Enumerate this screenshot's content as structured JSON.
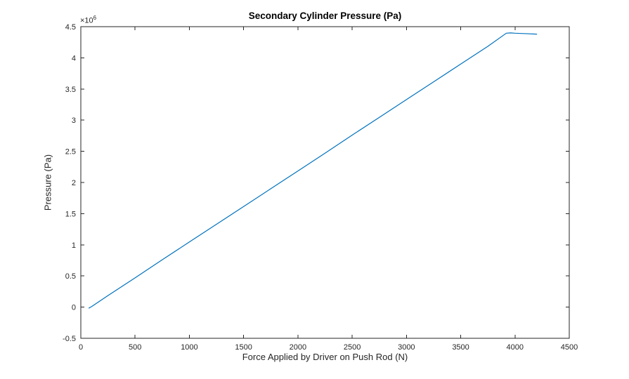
{
  "chart_data": {
    "type": "line",
    "title": "Secondary Cylinder Pressure (Pa)",
    "xlabel": "Force Applied by Driver on Push Rod (N)",
    "ylabel": "Pressure (Pa)",
    "y_exponent_base": "×10",
    "y_exponent": "6",
    "xlim": [
      0,
      4500
    ],
    "ylim": [
      -500000,
      4500000
    ],
    "xticks": [
      0,
      500,
      1000,
      1500,
      2000,
      2500,
      3000,
      3500,
      4000,
      4500
    ],
    "xtick_labels": [
      "0",
      "500",
      "1000",
      "1500",
      "2000",
      "2500",
      "3000",
      "3500",
      "4000",
      "4500"
    ],
    "yticks": [
      -500000,
      0,
      500000,
      1000000,
      1500000,
      2000000,
      2500000,
      3000000,
      3500000,
      4000000,
      4500000
    ],
    "ytick_labels": [
      "-0.5",
      "0",
      "0.5",
      "1",
      "1.5",
      "2",
      "2.5",
      "3",
      "3.5",
      "4",
      "4.5"
    ],
    "grid": false,
    "legend": null,
    "line_color": "#0072BD",
    "axes_color": "#262626",
    "series": [
      {
        "name": "secondary-cylinder-pressure",
        "x": [
          75,
          100,
          250,
          500,
          750,
          1000,
          1250,
          1500,
          1750,
          2000,
          2250,
          2500,
          2750,
          3000,
          3250,
          3500,
          3750,
          3920,
          3960,
          4000,
          4100,
          4200
        ],
        "y": [
          -15000,
          10000,
          185000,
          470000,
          760000,
          1045000,
          1330000,
          1615000,
          1900000,
          2185000,
          2470000,
          2760000,
          3045000,
          3330000,
          3615000,
          3900000,
          4185000,
          4395000,
          4400000,
          4395000,
          4388000,
          4380000
        ]
      }
    ]
  }
}
